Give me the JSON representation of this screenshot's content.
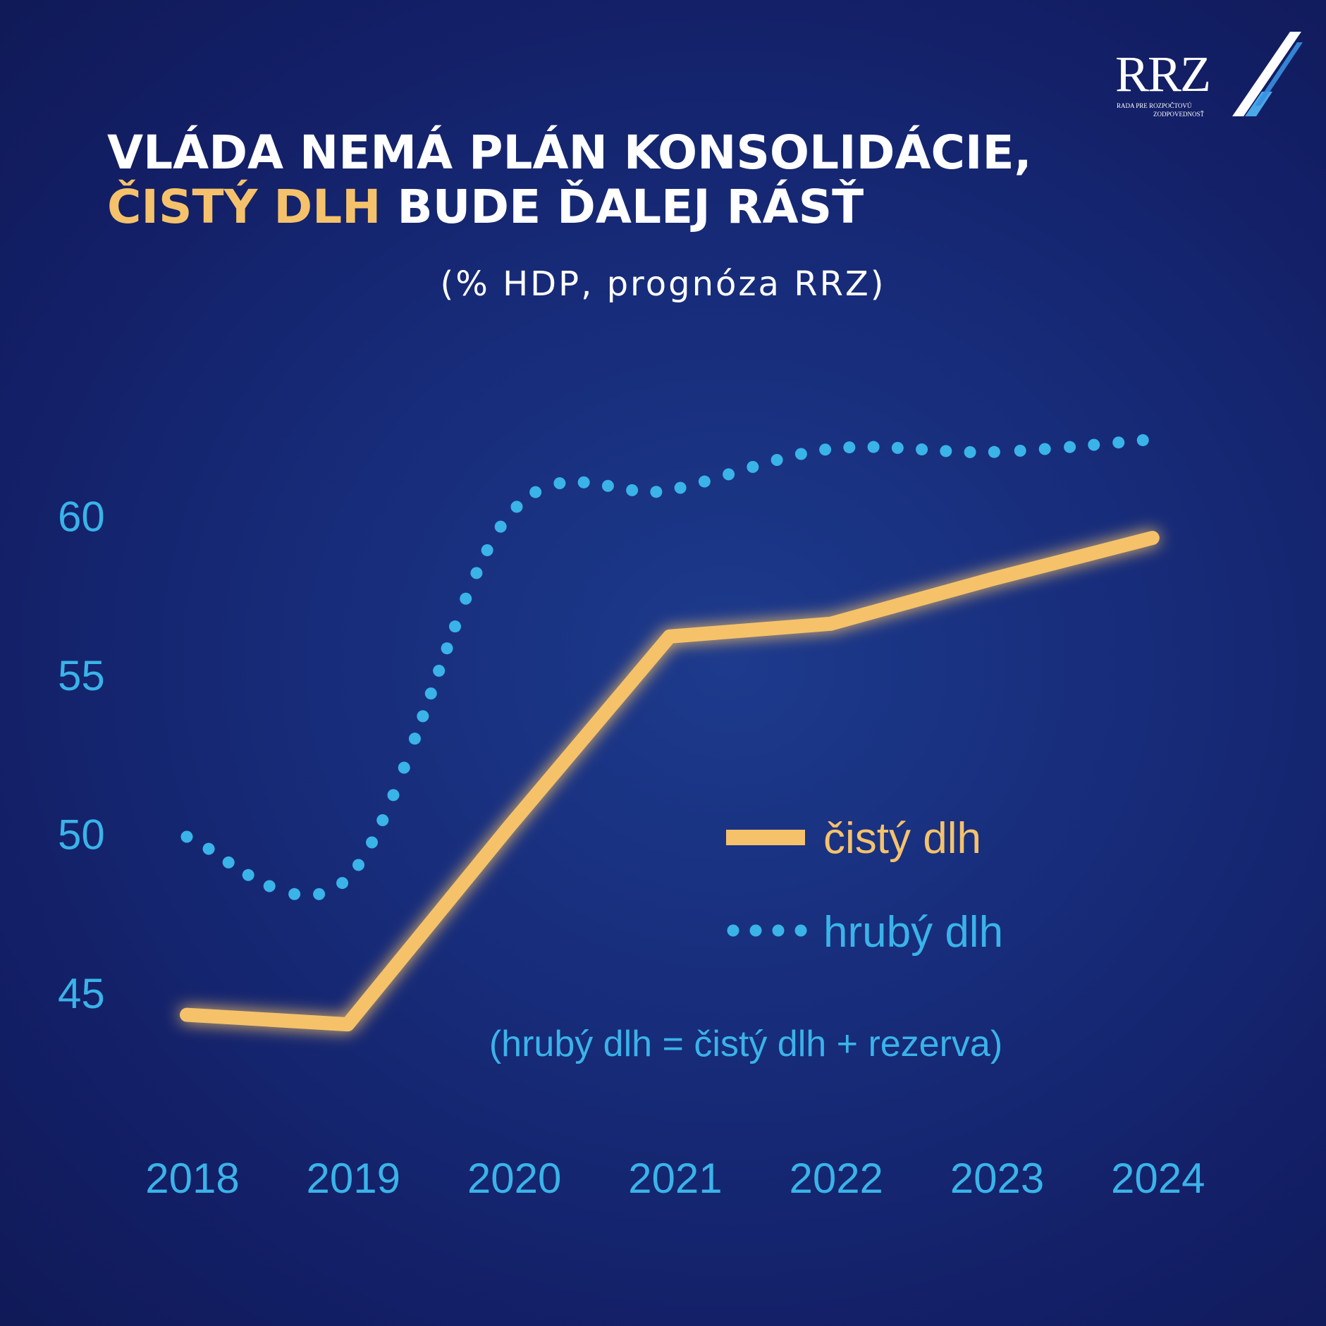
{
  "logo": {
    "text": "RRZ",
    "subtitle_line1": "RADA PRE ROZPOČTOVÚ",
    "subtitle_line2": "ZODPOVEDNOSŤ"
  },
  "header": {
    "title_line1": "VLÁDA NEMÁ PLÁN KONSOLIDÁCIE,",
    "title_line2_highlight": "ČISTÝ DLH",
    "title_line2_rest": " BUDE ĎALEJ RÁSŤ",
    "subtitle": "(% HDP, prognóza RRZ)"
  },
  "colors": {
    "net_debt": "#f5c26b",
    "gross_debt": "#3ab3e8",
    "background": "#152570",
    "text": "#ffffff"
  },
  "chart_data": {
    "type": "line",
    "title": "VLÁDA NEMÁ PLÁN KONSOLIDÁCIE, ČISTÝ DLH BUDE ĎALEJ RÁSŤ",
    "subtitle": "(% HDP, prognóza RRZ)",
    "xlabel": "",
    "ylabel": "",
    "categories": [
      "2018",
      "2019",
      "2020",
      "2021",
      "2022",
      "2023",
      "2024"
    ],
    "yticks": [
      "45",
      "50",
      "55",
      "60"
    ],
    "ylim": [
      42,
      65
    ],
    "grid": false,
    "legend_position": "right-center",
    "series": [
      {
        "name": "čistý dlh",
        "style": "solid",
        "values": [
          44.3,
          44.0,
          50.2,
          56.2,
          56.6,
          58.0,
          59.3
        ]
      },
      {
        "name": "hrubý dlh",
        "style": "dotted",
        "values": [
          49.9,
          48.6,
          60.0,
          60.8,
          62.1,
          62.0,
          62.4
        ]
      }
    ],
    "note": "(hrubý dlh = čistý dlh + rezerva)"
  }
}
